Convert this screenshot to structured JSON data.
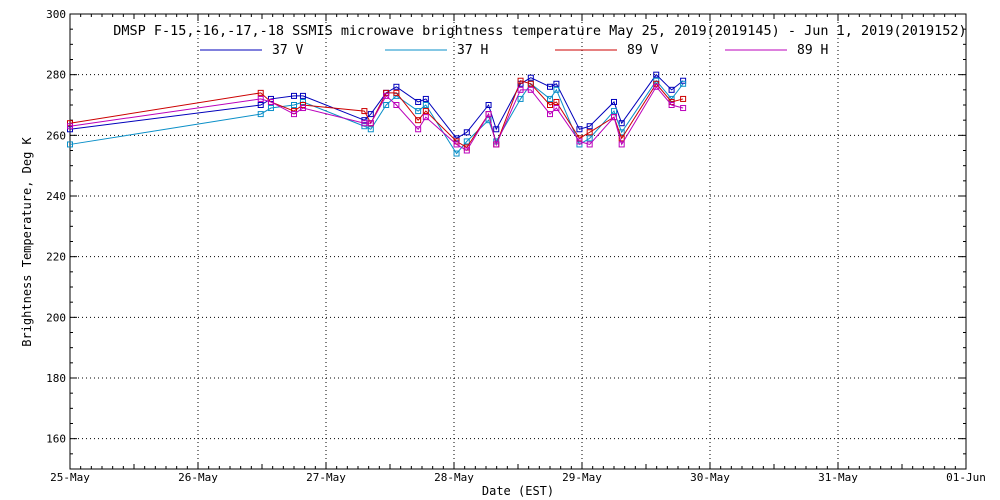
{
  "chart_data": {
    "type": "line",
    "title": "DMSP F-15,-16,-17,-18 SSMIS microwave brightness temperature May 25, 2019(2019145) - Jun  1, 2019(2019152)",
    "xlabel": "Date (EST)",
    "ylabel": "Brightness Temperature, Deg K",
    "xlim": [
      0,
      7
    ],
    "ylim": [
      150,
      300
    ],
    "yticks": [
      160,
      180,
      200,
      220,
      240,
      260,
      280,
      300
    ],
    "xticks": [
      {
        "x": 0,
        "label": "25-May"
      },
      {
        "x": 1,
        "label": "26-May"
      },
      {
        "x": 2,
        "label": "27-May"
      },
      {
        "x": 3,
        "label": "28-May"
      },
      {
        "x": 4,
        "label": "29-May"
      },
      {
        "x": 5,
        "label": "30-May"
      },
      {
        "x": 6,
        "label": "31-May"
      },
      {
        "x": 7,
        "label": "01-Jun"
      }
    ],
    "grid": true,
    "legend_position": "top",
    "x_units": "days since 25-May 00:00 EST",
    "x": [
      0.0,
      1.49,
      1.57,
      1.75,
      1.82,
      2.3,
      2.35,
      2.47,
      2.55,
      2.72,
      2.78,
      3.02,
      3.1,
      3.27,
      3.33,
      3.52,
      3.6,
      3.75,
      3.8,
      3.98,
      4.06,
      4.25,
      4.31,
      4.58,
      4.7,
      4.79
    ],
    "series": [
      {
        "name": "37 V",
        "color": "#0000bb",
        "values": [
          262,
          270,
          272,
          273,
          273,
          265,
          267,
          274,
          276,
          271,
          272,
          259,
          261,
          270,
          262,
          277,
          279,
          276,
          277,
          262,
          263,
          271,
          264,
          280,
          275,
          278
        ]
      },
      {
        "name": "37 H",
        "color": "#0a8fc8",
        "values": [
          257,
          267,
          269,
          270,
          271,
          263,
          262,
          270,
          273,
          268,
          270,
          254,
          258,
          265,
          258,
          272,
          277,
          272,
          275,
          257,
          259,
          268,
          261,
          278,
          272,
          277
        ]
      },
      {
        "name": "89 V",
        "color": "#cc0000",
        "values": [
          264,
          274,
          271,
          268,
          270,
          268,
          264,
          274,
          274,
          265,
          268,
          258,
          256,
          267,
          257,
          278,
          277,
          270,
          271,
          259,
          261,
          266,
          259,
          277,
          271,
          272
        ]
      },
      {
        "name": "89 H",
        "color": "#bb00bb",
        "values": [
          263,
          272,
          271,
          267,
          269,
          264,
          264,
          273,
          270,
          262,
          266,
          257,
          255,
          267,
          257,
          275,
          275,
          267,
          269,
          258,
          257,
          266,
          257,
          276,
          270,
          269
        ]
      }
    ]
  }
}
